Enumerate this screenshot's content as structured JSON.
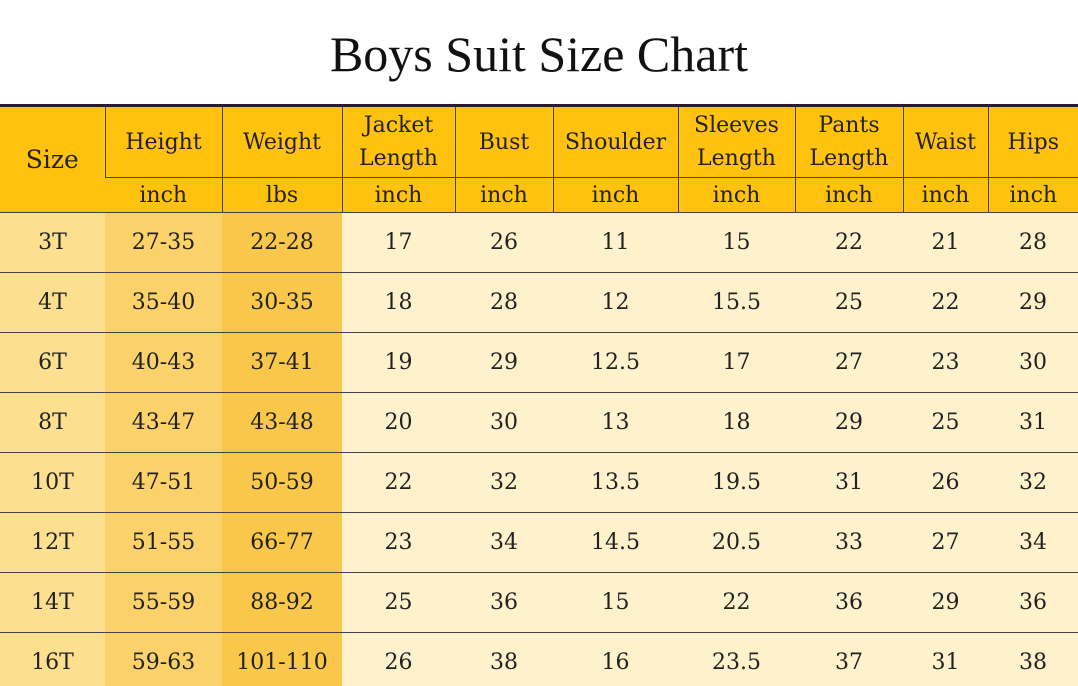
{
  "title": "Boys Suit Size Chart",
  "table": {
    "columns": [
      {
        "name": "Size"
      },
      {
        "name": "Height",
        "unit": "inch"
      },
      {
        "name": "Weight",
        "unit": "lbs"
      },
      {
        "name": "Jacket Length",
        "unit": "inch"
      },
      {
        "name": "Bust",
        "unit": "inch"
      },
      {
        "name": "Shoulder",
        "unit": "inch"
      },
      {
        "name": "Sleeves Length",
        "unit": "inch"
      },
      {
        "name": "Pants Length",
        "unit": "inch"
      },
      {
        "name": "Waist",
        "unit": "inch"
      },
      {
        "name": "Hips",
        "unit": "inch"
      }
    ],
    "rows": [
      [
        "3T",
        "27-35",
        "22-28",
        "17",
        "26",
        "11",
        "15",
        "22",
        "21",
        "28"
      ],
      [
        "4T",
        "35-40",
        "30-35",
        "18",
        "28",
        "12",
        "15.5",
        "25",
        "22",
        "29"
      ],
      [
        "6T",
        "40-43",
        "37-41",
        "19",
        "29",
        "12.5",
        "17",
        "27",
        "23",
        "30"
      ],
      [
        "8T",
        "43-47",
        "43-48",
        "20",
        "30",
        "13",
        "18",
        "29",
        "25",
        "31"
      ],
      [
        "10T",
        "47-51",
        "50-59",
        "22",
        "32",
        "13.5",
        "19.5",
        "31",
        "26",
        "32"
      ],
      [
        "12T",
        "51-55",
        "66-77",
        "23",
        "34",
        "14.5",
        "20.5",
        "33",
        "27",
        "34"
      ],
      [
        "14T",
        "55-59",
        "88-92",
        "25",
        "36",
        "15",
        "22",
        "36",
        "29",
        "36"
      ],
      [
        "16T",
        "59-63",
        "101-110",
        "26",
        "38",
        "16",
        "23.5",
        "37",
        "31",
        "38"
      ]
    ]
  }
}
